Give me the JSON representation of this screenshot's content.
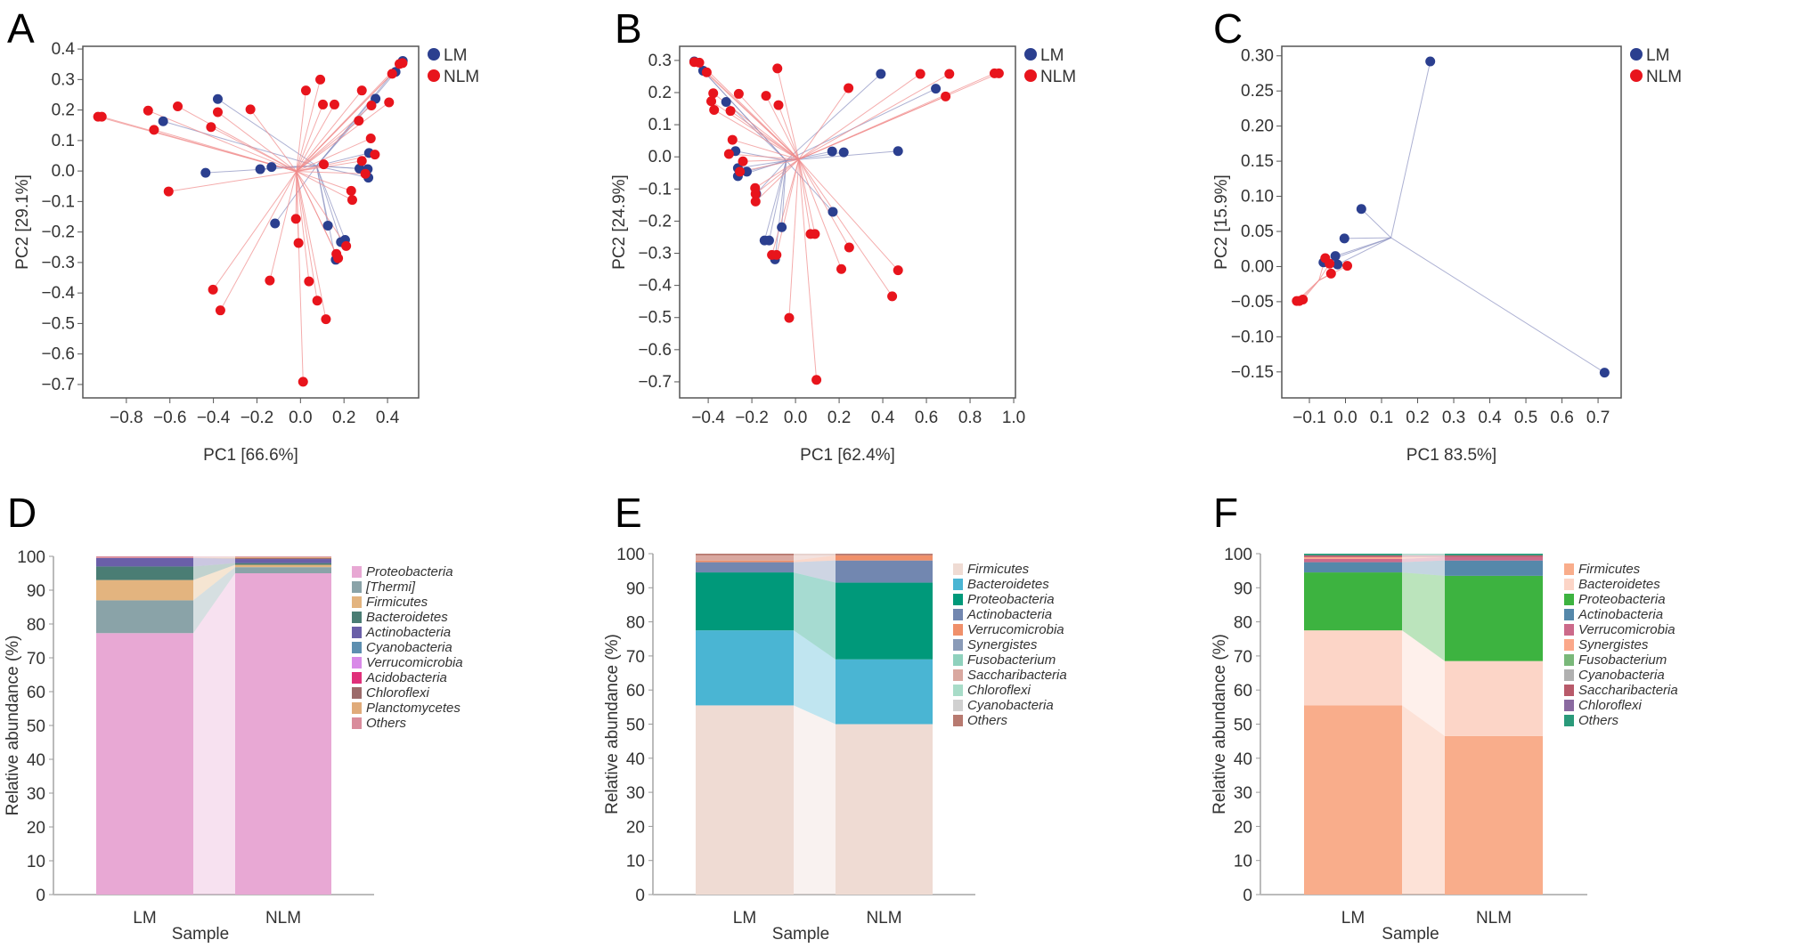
{
  "chart_data": [
    {
      "panel": "A",
      "type": "scatter",
      "xlabel": "PC1 [66.6%]",
      "ylabel": "PC2 [29.1%]",
      "xlim": [
        -1.0,
        0.543
      ],
      "ylim": [
        -0.744,
        0.409
      ],
      "xticks": [
        "-0.8",
        "-0.6",
        "-0.4",
        "-0.2",
        "0.0",
        "0.2",
        "0.4"
      ],
      "yticks": [
        "0.4",
        "0.3",
        "0.2",
        "0.1",
        "0.0",
        "-0.1",
        "-0.2",
        "-0.3",
        "-0.4",
        "-0.5",
        "-0.6",
        "-0.7"
      ],
      "legend": [
        "LM",
        "NLM"
      ],
      "legend_position": "right-top",
      "series": [
        {
          "name": "LM",
          "color": "#2b3f8f",
          "points": [
            [
              -0.38,
              0.236
            ],
            [
              -0.631,
              0.163
            ],
            [
              -0.436,
              -0.006
            ],
            [
              -0.185,
              0.006
            ],
            [
              -0.133,
              0.013
            ],
            [
              -0.117,
              -0.172
            ],
            [
              0.126,
              -0.179
            ],
            [
              0.186,
              -0.233
            ],
            [
              0.205,
              -0.226
            ],
            [
              0.162,
              -0.291
            ],
            [
              0.271,
              0.008
            ],
            [
              0.309,
              0.006
            ],
            [
              0.312,
              -0.022
            ],
            [
              0.315,
              0.059
            ],
            [
              0.345,
              0.237
            ],
            [
              0.437,
              0.325
            ],
            [
              0.47,
              0.361
            ]
          ]
        },
        {
          "name": "NLM",
          "color": "#e8141c",
          "points": [
            [
              -0.93,
              0.178
            ],
            [
              -0.913,
              0.178
            ],
            [
              -0.7,
              0.198
            ],
            [
              -0.673,
              0.135
            ],
            [
              -0.564,
              0.212
            ],
            [
              -0.411,
              0.144
            ],
            [
              -0.38,
              0.193
            ],
            [
              -0.23,
              0.202
            ],
            [
              0.025,
              0.264
            ],
            [
              0.091,
              0.3
            ],
            [
              0.103,
              0.218
            ],
            [
              0.156,
              0.218
            ],
            [
              0.282,
              0.264
            ],
            [
              0.326,
              0.215
            ],
            [
              0.268,
              0.165
            ],
            [
              0.407,
              0.225
            ],
            [
              0.421,
              0.319
            ],
            [
              0.455,
              0.351
            ],
            [
              0.469,
              0.354
            ],
            [
              0.323,
              0.107
            ],
            [
              0.342,
              0.054
            ],
            [
              0.282,
              0.033
            ],
            [
              0.107,
              0.022
            ],
            [
              0.298,
              -0.009
            ],
            [
              -0.606,
              -0.067
            ],
            [
              -0.021,
              -0.157
            ],
            [
              0.233,
              -0.065
            ],
            [
              0.238,
              -0.095
            ],
            [
              -0.009,
              -0.236
            ],
            [
              0.21,
              -0.246
            ],
            [
              0.165,
              -0.272
            ],
            [
              0.173,
              -0.286
            ],
            [
              -0.141,
              -0.359
            ],
            [
              0.039,
              -0.362
            ],
            [
              -0.402,
              -0.389
            ],
            [
              -0.368,
              -0.457
            ],
            [
              0.077,
              -0.425
            ],
            [
              0.117,
              -0.486
            ],
            [
              0.012,
              -0.691
            ]
          ]
        }
      ]
    },
    {
      "panel": "B",
      "type": "scatter",
      "xlabel": "PC1 [62.4%]",
      "ylabel": "PC2 [24.9%]",
      "xlim": [
        -0.531,
        1.008
      ],
      "ylim": [
        -0.75,
        0.344
      ],
      "xticks": [
        "-0.4",
        "-0.2",
        "0.0",
        "0.2",
        "0.4",
        "0.6",
        "0.8",
        "1.0"
      ],
      "yticks": [
        "0.3",
        "0.2",
        "0.1",
        "0.0",
        "-0.1",
        "-0.2",
        "-0.3",
        "-0.4",
        "-0.5",
        "-0.6",
        "-0.7"
      ],
      "legend": [
        "LM",
        "NLM"
      ],
      "legend_position": "right-top",
      "series": [
        {
          "name": "LM",
          "color": "#2b3f8f",
          "points": [
            [
              -0.464,
              0.297
            ],
            [
              -0.423,
              0.268
            ],
            [
              -0.318,
              0.171
            ],
            [
              -0.275,
              0.018
            ],
            [
              -0.264,
              -0.035
            ],
            [
              -0.264,
              -0.06
            ],
            [
              -0.223,
              -0.046
            ],
            [
              -0.18,
              -0.115
            ],
            [
              -0.142,
              -0.26
            ],
            [
              -0.121,
              -0.26
            ],
            [
              -0.063,
              -0.219
            ],
            [
              -0.094,
              -0.319
            ],
            [
              0.168,
              0.017
            ],
            [
              0.221,
              0.014
            ],
            [
              0.47,
              0.018
            ],
            [
              0.171,
              -0.171
            ],
            [
              0.391,
              0.258
            ],
            [
              0.643,
              0.212
            ]
          ]
        },
        {
          "name": "NLM",
          "color": "#e8141c",
          "points": [
            [
              -0.464,
              0.295
            ],
            [
              -0.441,
              0.293
            ],
            [
              -0.407,
              0.263
            ],
            [
              -0.377,
              0.198
            ],
            [
              -0.386,
              0.173
            ],
            [
              -0.373,
              0.146
            ],
            [
              -0.298,
              0.143
            ],
            [
              -0.26,
              0.196
            ],
            [
              -0.135,
              0.19
            ],
            [
              -0.083,
              0.275
            ],
            [
              -0.078,
              0.161
            ],
            [
              -0.289,
              0.053
            ],
            [
              -0.305,
              0.009
            ],
            [
              -0.241,
              -0.014
            ],
            [
              -0.255,
              -0.046
            ],
            [
              -0.185,
              -0.097
            ],
            [
              -0.183,
              -0.115
            ],
            [
              -0.183,
              -0.139
            ],
            [
              -0.108,
              -0.305
            ],
            [
              -0.087,
              -0.305
            ],
            [
              -0.029,
              -0.501
            ],
            [
              0.069,
              -0.24
            ],
            [
              0.089,
              -0.24
            ],
            [
              0.096,
              -0.694
            ],
            [
              0.21,
              -0.349
            ],
            [
              0.246,
              -0.282
            ],
            [
              0.243,
              0.214
            ],
            [
              0.47,
              -0.353
            ],
            [
              0.443,
              -0.434
            ],
            [
              0.572,
              0.258
            ],
            [
              0.705,
              0.258
            ],
            [
              0.688,
              0.188
            ],
            [
              0.912,
              0.26
            ],
            [
              0.932,
              0.26
            ]
          ]
        }
      ]
    },
    {
      "panel": "C",
      "type": "scatter",
      "xlabel": "PC1 83.5%]",
      "ylabel": "PC2 [15.9%]",
      "xlim": [
        -0.1765,
        0.764
      ],
      "ylim": [
        -0.187,
        0.3136
      ],
      "xticks": [
        "-0.1",
        "0.0",
        "0.1",
        "0.2",
        "0.3",
        "0.4",
        "0.5",
        "0.6",
        "0.7"
      ],
      "yticks": [
        "0.30",
        "0.25",
        "0.20",
        "0.15",
        "0.10",
        "0.05",
        "0.00",
        "-0.05",
        "-0.10",
        "-0.15"
      ],
      "legend": [
        "LM",
        "NLM"
      ],
      "legend_position": "right-top",
      "series": [
        {
          "name": "LM",
          "color": "#2b3f8f",
          "points": [
            [
              0.235,
              0.292
            ],
            [
              0.044,
              0.082
            ],
            [
              -0.003,
              0.04
            ],
            [
              -0.028,
              0.015
            ],
            [
              -0.061,
              0.006
            ],
            [
              -0.022,
              0.003
            ],
            [
              0.718,
              -0.151
            ]
          ]
        },
        {
          "name": "NLM",
          "color": "#e8141c",
          "points": [
            [
              -0.056,
              0.012
            ],
            [
              -0.044,
              0.004
            ],
            [
              -0.04,
              -0.01
            ],
            [
              0.005,
              0.001
            ],
            [
              -0.135,
              -0.049
            ],
            [
              -0.118,
              -0.047
            ],
            [
              -0.128,
              -0.049
            ]
          ]
        }
      ]
    },
    {
      "panel": "D",
      "type": "bar",
      "stacked": true,
      "xlabel": "Sample",
      "ylabel": "Relative abundance (%)",
      "ylim": [
        0,
        100
      ],
      "yticks": [
        "0",
        "10",
        "20",
        "30",
        "40",
        "50",
        "60",
        "70",
        "80",
        "90",
        "100"
      ],
      "categories": [
        "LM",
        "NLM"
      ],
      "legend_position": "right",
      "series": [
        {
          "name": "Proteobacteria",
          "color": "#e8a8d4",
          "values": [
            77.3,
            95.0
          ]
        },
        {
          "name": "[Thermi]",
          "color": "#8aa3a8",
          "values": [
            9.7,
            1.8
          ]
        },
        {
          "name": "Firmicutes",
          "color": "#e3b47f",
          "values": [
            6.0,
            0.7
          ]
        },
        {
          "name": "Bacteroidetes",
          "color": "#4a7d74",
          "values": [
            4.0,
            0.5
          ]
        },
        {
          "name": "Actinobacteria",
          "color": "#6a5fa8",
          "values": [
            2.5,
            1.2
          ]
        },
        {
          "name": "Cyanobacteria",
          "color": "#5d8fb0",
          "values": [
            0,
            0
          ]
        },
        {
          "name": "Verrucomicrobia",
          "color": "#d98ae8",
          "values": [
            0,
            0
          ]
        },
        {
          "name": "Acidobacteria",
          "color": "#e0307a",
          "values": [
            0,
            0
          ]
        },
        {
          "name": "Chloroflexi",
          "color": "#9c6b6b",
          "values": [
            0,
            0.3
          ]
        },
        {
          "name": "Planctomycetes",
          "color": "#e0ab7a",
          "values": [
            0,
            0.3
          ]
        },
        {
          "name": "Others",
          "color": "#d98c9c",
          "values": [
            0.5,
            0.2
          ]
        }
      ]
    },
    {
      "panel": "E",
      "type": "bar",
      "stacked": true,
      "xlabel": "Sample",
      "ylabel": "Relative abundance (%)",
      "ylim": [
        0,
        100
      ],
      "yticks": [
        "0",
        "10",
        "20",
        "30",
        "40",
        "50",
        "60",
        "70",
        "80",
        "90",
        "100"
      ],
      "categories": [
        "LM",
        "NLM"
      ],
      "legend_position": "right",
      "series": [
        {
          "name": "Firmicutes",
          "color": "#efdbd3",
          "values": [
            55.5,
            50.0
          ]
        },
        {
          "name": "Bacteroidetes",
          "color": "#4ab5d3",
          "values": [
            22.0,
            19.0
          ]
        },
        {
          "name": "Proteobacteria",
          "color": "#00997a",
          "values": [
            17.0,
            22.5
          ]
        },
        {
          "name": "Actinobacteria",
          "color": "#7287b0",
          "values": [
            3.0,
            6.5
          ]
        },
        {
          "name": "Verrucomicrobia",
          "color": "#f0906a",
          "values": [
            0.5,
            1.5
          ]
        },
        {
          "name": "Synergistes",
          "color": "#8a9bb8",
          "values": [
            0,
            0
          ]
        },
        {
          "name": "Fusobacterium",
          "color": "#8fd1bd",
          "values": [
            0,
            0
          ]
        },
        {
          "name": "Saccharibacteria",
          "color": "#d9a8a0",
          "values": [
            1.5,
            0
          ]
        },
        {
          "name": "Chloroflexi",
          "color": "#a8dcc8",
          "values": [
            0,
            0
          ]
        },
        {
          "name": "Cyanobacteria",
          "color": "#d0d0d0",
          "values": [
            0,
            0
          ]
        },
        {
          "name": "Others",
          "color": "#b87a70",
          "values": [
            0.5,
            0.5
          ]
        }
      ]
    },
    {
      "panel": "F",
      "type": "bar",
      "stacked": true,
      "xlabel": "Sample",
      "ylabel": "Relative abundance (%)",
      "ylim": [
        0,
        100
      ],
      "yticks": [
        "0",
        "10",
        "20",
        "30",
        "40",
        "50",
        "60",
        "70",
        "80",
        "90",
        "100"
      ],
      "categories": [
        "LM",
        "NLM"
      ],
      "legend_position": "right",
      "series": [
        {
          "name": "Firmicutes",
          "color": "#f9ad8b",
          "values": [
            55.5,
            46.5
          ]
        },
        {
          "name": "Bacteroidetes",
          "color": "#fcd5c7",
          "values": [
            22.0,
            22.0
          ]
        },
        {
          "name": "Proteobacteria",
          "color": "#3db340",
          "values": [
            17.0,
            25.0
          ]
        },
        {
          "name": "Actinobacteria",
          "color": "#5588aa",
          "values": [
            3.0,
            4.5
          ]
        },
        {
          "name": "Verrucomicrobia",
          "color": "#cc6a8a",
          "values": [
            1.0,
            1.0
          ]
        },
        {
          "name": "Synergistes",
          "color": "#fba88a",
          "values": [
            0.5,
            0
          ]
        },
        {
          "name": "Fusobacterium",
          "color": "#7ab87a",
          "values": [
            0,
            0
          ]
        },
        {
          "name": "Cyanobacteria",
          "color": "#b0b0b0",
          "values": [
            0,
            0
          ]
        },
        {
          "name": "Saccharibacteria",
          "color": "#b85a6a",
          "values": [
            0.5,
            0.5
          ]
        },
        {
          "name": "Chloroflexi",
          "color": "#8a6aa0",
          "values": [
            0,
            0
          ]
        },
        {
          "name": "Others",
          "color": "#2a9a7a",
          "values": [
            0.5,
            0.5
          ]
        }
      ]
    }
  ]
}
